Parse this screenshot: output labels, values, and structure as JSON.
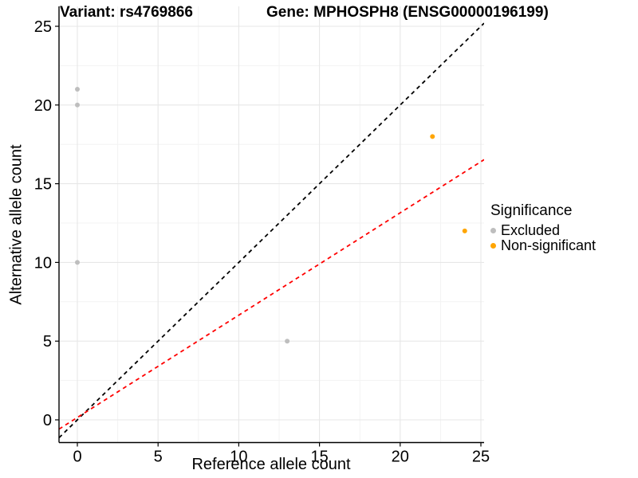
{
  "header": {
    "variant_title": "Variant: rs4769866",
    "gene_title": "Gene: MPHOSPH8 (ENSG00000196199)"
  },
  "legend": {
    "title": "Significance",
    "items": [
      {
        "label": "Excluded",
        "color": "#BEBEBE"
      },
      {
        "label": "Non-significant",
        "color": "#FFA500"
      }
    ]
  },
  "chart_data": {
    "type": "scatter",
    "title": "Variant: rs4769866    Gene: MPHOSPH8 (ENSG00000196199)",
    "xlabel": "Reference allele count",
    "ylabel": "Alternative allele count",
    "xlim": [
      -1.2,
      25.2
    ],
    "ylim": [
      -1.4,
      26.3
    ],
    "x_ticks": [
      0,
      5,
      10,
      15,
      20,
      25
    ],
    "y_ticks": [
      0,
      5,
      10,
      15,
      20,
      25
    ],
    "x_minor_ticks": [
      2.5,
      7.5,
      12.5,
      17.5,
      22.5
    ],
    "y_minor_ticks": [
      2.5,
      7.5,
      12.5,
      17.5,
      22.5
    ],
    "grid": {
      "visible": true,
      "major_color": "#E7E7E7",
      "minor_color": "#F3F3F3"
    },
    "legend_position": "right",
    "background": "#FFFFFF",
    "series": [
      {
        "name": "Excluded",
        "color": "#BEBEBE",
        "points": [
          [
            0,
            21
          ],
          [
            0,
            20
          ],
          [
            0,
            10
          ],
          [
            13,
            5
          ]
        ]
      },
      {
        "name": "Non-significant",
        "color": "#FFA500",
        "points": [
          [
            22,
            18
          ],
          [
            24,
            12
          ]
        ]
      }
    ],
    "lines": [
      {
        "name": "identity-line",
        "slope": 1,
        "intercept": 0,
        "color": "#000000",
        "style": "dashed"
      },
      {
        "name": "fit-line",
        "slope": 0.65,
        "intercept": 0.15,
        "color": "#FF0000",
        "style": "dashed"
      }
    ]
  }
}
